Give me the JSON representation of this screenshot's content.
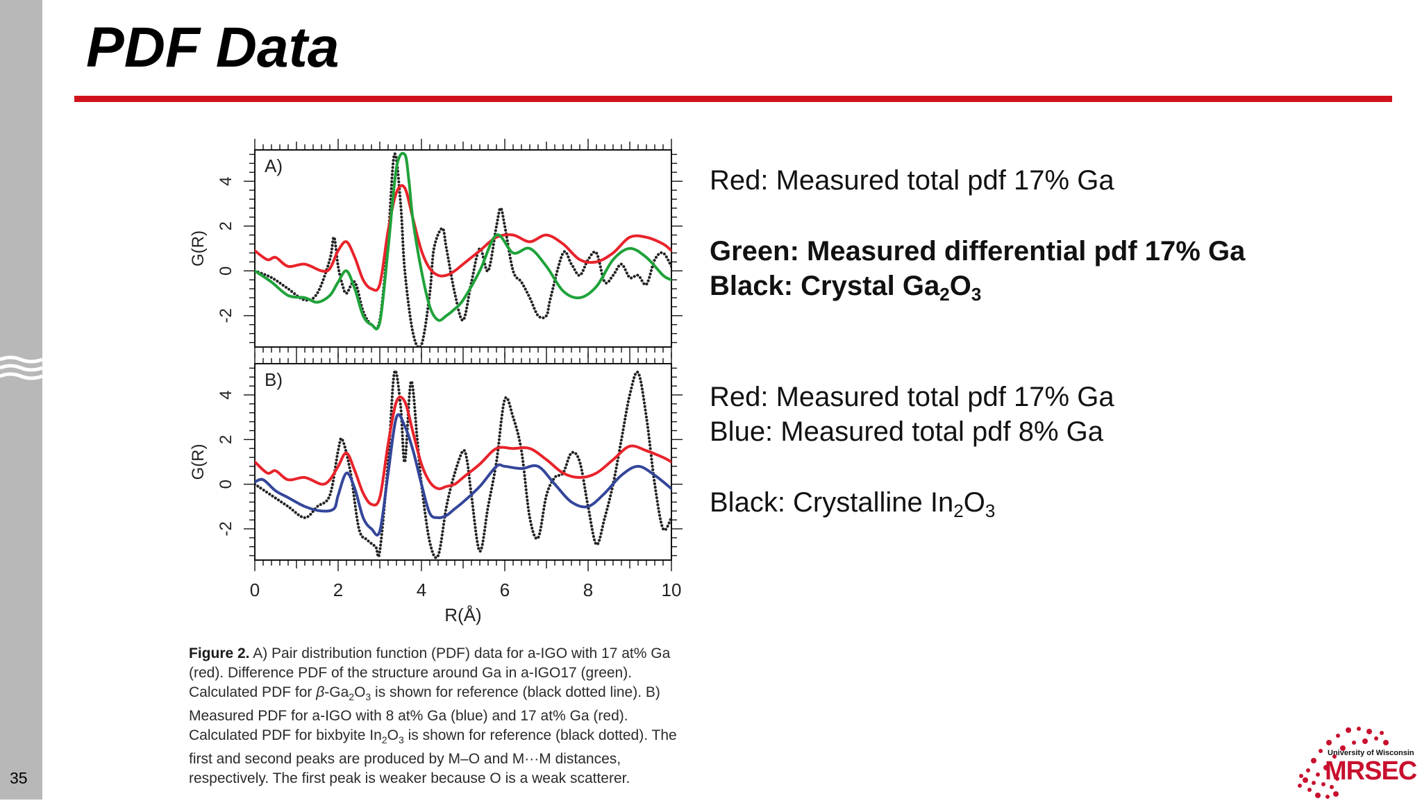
{
  "slide": {
    "title": "PDF Data",
    "number": "35"
  },
  "legend": {
    "a_red": "Red: Measured total pdf 17% Ga",
    "a_green": "Green: Measured differential pdf 17% Ga",
    "a_black_prefix": "Black: Crystal Ga",
    "b_red": "Red: Measured total pdf 17% Ga",
    "b_blue": "Blue: Measured total pdf 8% Ga",
    "b_black_prefix": "Black: Crystalline In"
  },
  "caption": {
    "label": "Figure 2.",
    "text_1": " A) Pair distribution function (PDF) data for a-IGO with 17 at% Ga (red). Difference PDF of the structure around Ga in a-IGO17 (green). Calculated PDF for ",
    "beta": "β",
    "text_2": "-Ga",
    "text_3": " is shown for reference (black dotted line). B) Measured PDF for a-IGO with 8 at% Ga (blue) and 17 at% Ga (red). Calculated PDF for bixbyite In",
    "text_4": " is shown for reference (black dotted). The first and second peaks are produced by M–O and M···M distances, respectively. The first peak is weaker because O is a weak scatterer."
  },
  "logo": {
    "small": "University of Wisconsin",
    "big": "MRSEC"
  },
  "colors": {
    "red": "#e8232b",
    "green": "#1fa23a",
    "blue": "#34469a",
    "black": "#222222",
    "accent": "#d0121b"
  },
  "chart_data": [
    {
      "type": "line",
      "panel_label": "A)",
      "xlabel": "",
      "ylabel": "G(R)",
      "xlim": [
        0,
        10
      ],
      "ylim": [
        -3.4,
        5.4
      ],
      "y_ticks": [
        -2,
        0,
        2,
        4
      ],
      "x_ticks": [
        0,
        2,
        4,
        6,
        8,
        10
      ],
      "series": [
        {
          "color": "red",
          "style": "solid",
          "x": [
            0,
            0.3,
            0.5,
            0.8,
            1.2,
            1.6,
            1.8,
            2.0,
            2.2,
            2.4,
            2.6,
            2.8,
            3.0,
            3.2,
            3.4,
            3.6,
            3.8,
            4.0,
            4.2,
            4.4,
            4.6,
            4.8,
            5.0,
            5.4,
            5.8,
            6.2,
            6.6,
            7.0,
            7.4,
            7.8,
            8.2,
            8.6,
            9.0,
            9.4,
            9.8,
            10.0
          ],
          "y": [
            0.9,
            0.5,
            0.6,
            0.2,
            0.3,
            0,
            0.1,
            0.9,
            1.3,
            0.6,
            -0.4,
            -0.8,
            -0.6,
            1.8,
            3.5,
            3.7,
            2.3,
            0.9,
            0.1,
            -0.2,
            -0.2,
            0,
            0.3,
            0.9,
            1.5,
            1.6,
            1.3,
            1.6,
            1.2,
            0.5,
            0.4,
            0.8,
            1.5,
            1.5,
            1.2,
            0.9
          ]
        },
        {
          "color": "green",
          "style": "solid",
          "x": [
            0,
            0.4,
            0.8,
            1.2,
            1.5,
            1.8,
            2.0,
            2.2,
            2.4,
            2.6,
            2.8,
            3.0,
            3.2,
            3.4,
            3.6,
            3.7,
            3.8,
            4.0,
            4.2,
            4.4,
            4.6,
            4.8,
            5.0,
            5.4,
            5.8,
            6.2,
            6.6,
            7.0,
            7.4,
            7.8,
            8.2,
            8.6,
            9.0,
            9.4,
            9.8,
            10.0
          ],
          "y": [
            0,
            -0.5,
            -1.1,
            -1.2,
            -1.4,
            -1.1,
            -0.5,
            0,
            -0.8,
            -2.0,
            -2.4,
            -2.3,
            1.0,
            4.6,
            5.2,
            4.0,
            2.2,
            0,
            -1.6,
            -2.2,
            -2.0,
            -1.7,
            -1.3,
            0,
            1.6,
            0.8,
            1.0,
            0.2,
            -0.9,
            -1.2,
            -0.7,
            0.5,
            1.0,
            0.6,
            -0.2,
            -0.4
          ]
        },
        {
          "color": "black",
          "style": "dotted",
          "x": [
            0,
            0.4,
            0.8,
            1.2,
            1.5,
            1.8,
            1.9,
            2.0,
            2.1,
            2.2,
            2.4,
            2.6,
            2.8,
            3.0,
            3.2,
            3.35,
            3.5,
            3.6,
            3.8,
            4.0,
            4.2,
            4.3,
            4.5,
            4.6,
            4.8,
            5.0,
            5.2,
            5.4,
            5.6,
            5.8,
            5.9,
            6.0,
            6.2,
            6.4,
            6.6,
            6.8,
            7.0,
            7.1,
            7.4,
            7.6,
            7.8,
            8.0,
            8.2,
            8.4,
            8.6,
            8.8,
            9.0,
            9.2,
            9.4,
            9.6,
            9.8,
            10.0
          ],
          "y": [
            0,
            -0.3,
            -0.8,
            -1.3,
            -1.0,
            0.5,
            1.5,
            0.2,
            -0.6,
            -1.0,
            -0.5,
            -1.8,
            -2.4,
            -2.2,
            1.5,
            5.2,
            3.0,
            0,
            -2.8,
            -3.3,
            -1.0,
            1.0,
            1.9,
            1.0,
            -1.0,
            -2.2,
            -0.5,
            1.0,
            0,
            2.0,
            2.8,
            2.0,
            0,
            -0.5,
            -1.2,
            -2.0,
            -2.0,
            -1.2,
            0.8,
            0.3,
            -0.2,
            0.5,
            0.8,
            -0.5,
            -0.2,
            0.3,
            -0.3,
            -0.2,
            -0.6,
            0.5,
            0.8,
            0.2
          ]
        }
      ]
    },
    {
      "type": "line",
      "panel_label": "B)",
      "xlabel": "R(Å)",
      "ylabel": "G(R)",
      "xlim": [
        0,
        10
      ],
      "ylim": [
        -3.4,
        5.4
      ],
      "y_ticks": [
        -2,
        0,
        2,
        4
      ],
      "x_ticks": [
        0,
        2,
        4,
        6,
        8,
        10
      ],
      "series": [
        {
          "color": "red",
          "style": "solid",
          "x": [
            0,
            0.3,
            0.5,
            0.8,
            1.2,
            1.6,
            1.8,
            2.0,
            2.2,
            2.4,
            2.6,
            2.8,
            3.0,
            3.2,
            3.4,
            3.6,
            3.8,
            4.0,
            4.2,
            4.4,
            4.6,
            4.8,
            5.0,
            5.4,
            5.8,
            6.2,
            6.6,
            7.0,
            7.4,
            7.8,
            8.2,
            8.6,
            9.0,
            9.4,
            9.8,
            10.0
          ],
          "y": [
            1.0,
            0.5,
            0.6,
            0.2,
            0.3,
            0,
            0.2,
            0.8,
            1.4,
            0.6,
            -0.4,
            -0.9,
            -0.6,
            1.8,
            3.7,
            3.7,
            2.3,
            0.9,
            0.1,
            -0.2,
            -0.1,
            0,
            0.3,
            0.9,
            1.6,
            1.6,
            1.6,
            1.1,
            0.5,
            0.3,
            0.5,
            1.1,
            1.7,
            1.5,
            1.2,
            1.0
          ]
        },
        {
          "color": "blue",
          "style": "solid",
          "x": [
            0,
            0.2,
            0.5,
            0.8,
            1.2,
            1.6,
            1.9,
            2.0,
            2.2,
            2.4,
            2.6,
            2.8,
            3.0,
            3.2,
            3.4,
            3.6,
            3.8,
            4.0,
            4.2,
            4.4,
            4.6,
            4.8,
            5.0,
            5.4,
            5.8,
            6.0,
            6.4,
            6.8,
            7.2,
            7.6,
            8.0,
            8.4,
            8.8,
            9.2,
            9.6,
            10.0
          ],
          "y": [
            0.1,
            0.2,
            -0.3,
            -0.6,
            -1.0,
            -1.2,
            -1.1,
            -0.5,
            0.5,
            -0.2,
            -1.5,
            -2.0,
            -2.1,
            0.5,
            3.0,
            2.6,
            1.5,
            0,
            -1.3,
            -1.5,
            -1.4,
            -1.1,
            -0.8,
            -0.1,
            0.8,
            0.8,
            0.7,
            0.8,
            0.0,
            -0.8,
            -1.0,
            -0.4,
            0.4,
            0.8,
            0.4,
            -0.2
          ]
        },
        {
          "color": "black",
          "style": "dotted",
          "x": [
            0,
            0.4,
            0.8,
            1.2,
            1.5,
            1.8,
            2.0,
            2.1,
            2.3,
            2.5,
            2.7,
            2.9,
            3.0,
            3.2,
            3.35,
            3.5,
            3.6,
            3.75,
            3.9,
            4.0,
            4.2,
            4.4,
            4.6,
            4.8,
            5.0,
            5.1,
            5.2,
            5.4,
            5.6,
            5.8,
            6.0,
            6.2,
            6.4,
            6.6,
            6.8,
            7.0,
            7.2,
            7.4,
            7.6,
            7.8,
            8.0,
            8.2,
            8.4,
            8.6,
            8.8,
            9.0,
            9.2,
            9.4,
            9.6,
            9.8,
            10.0
          ],
          "y": [
            0,
            -0.5,
            -1.0,
            -1.5,
            -1.0,
            -0.5,
            1.5,
            2.0,
            0.5,
            -2.0,
            -2.5,
            -2.8,
            -3.0,
            1.0,
            5.0,
            3.5,
            1.0,
            4.6,
            2.0,
            0,
            -2.6,
            -3.2,
            -1.0,
            0.5,
            1.5,
            1.0,
            -0.5,
            -3.0,
            -1.0,
            1.0,
            3.8,
            3.0,
            1.5,
            -1.5,
            -2.4,
            -0.5,
            0.3,
            0.5,
            1.4,
            1.0,
            -1.0,
            -2.7,
            -1.5,
            0,
            2.0,
            4.0,
            5.0,
            3.0,
            0,
            -2.0,
            -1.5
          ]
        }
      ]
    }
  ]
}
